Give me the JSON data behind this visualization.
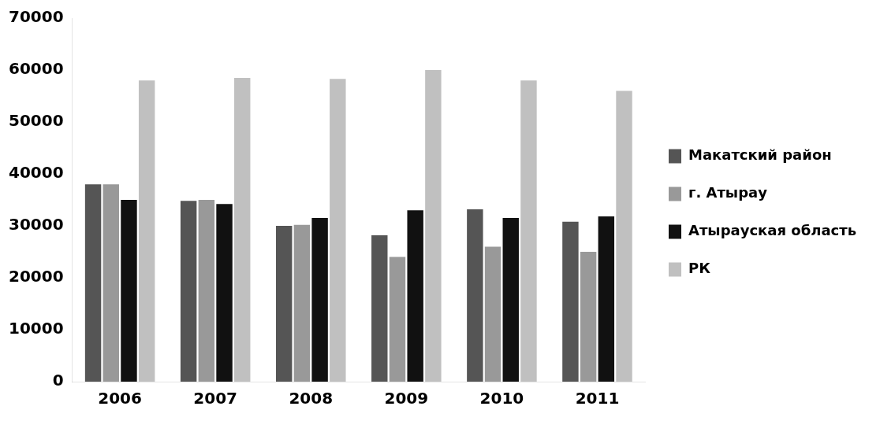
{
  "chart_data": {
    "type": "bar",
    "categories": [
      "2006",
      "2007",
      "2008",
      "2009",
      "2010",
      "2011"
    ],
    "series": [
      {
        "name": "Макатский район",
        "color": "#555555",
        "values": [
          38000,
          34800,
          30000,
          28200,
          33200,
          30800
        ]
      },
      {
        "name": "г. Атырау",
        "color": "#999999",
        "values": [
          38000,
          35000,
          30200,
          24000,
          26000,
          25000
        ]
      },
      {
        "name": "Атырауская область",
        "color": "#111111",
        "values": [
          35000,
          34200,
          31500,
          33000,
          31500,
          31800
        ]
      },
      {
        "name": "РК",
        "color": "#c0c0c0",
        "values": [
          58000,
          58500,
          58300,
          60000,
          58000,
          56000
        ]
      }
    ],
    "ylim": [
      0,
      70000
    ],
    "yticks": [
      0,
      10000,
      20000,
      30000,
      40000,
      50000,
      60000,
      70000
    ],
    "grid": false,
    "legend": "right"
  }
}
